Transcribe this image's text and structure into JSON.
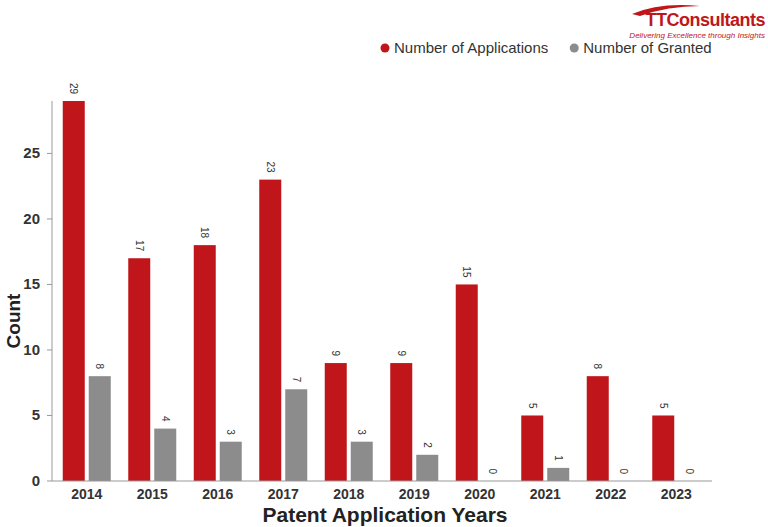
{
  "chart_data": {
    "type": "bar",
    "x_label": "Patent Application Years",
    "y_label": "Count",
    "annotations": [
      "TTConsultants",
      "Delivering Excellence through Insights"
    ],
    "categories": [
      "2014",
      "2015",
      "2016",
      "2017",
      "2018",
      "2019",
      "2020",
      "2021",
      "2022",
      "2023"
    ],
    "series": [
      {
        "name": "Number of Applications",
        "color": "#c0161b",
        "values": [
          29,
          17,
          18,
          23,
          9,
          9,
          15,
          5,
          8,
          5
        ]
      },
      {
        "name": "Number of Granted",
        "color": "#8c8c8c",
        "values": [
          8,
          4,
          3,
          7,
          3,
          2,
          0,
          1,
          0,
          0
        ]
      }
    ],
    "ylim": [
      0,
      29
    ],
    "yticks": [
      0,
      5,
      10,
      15,
      20,
      25
    ],
    "grid": false,
    "legend": "top",
    "data_labels": true
  }
}
